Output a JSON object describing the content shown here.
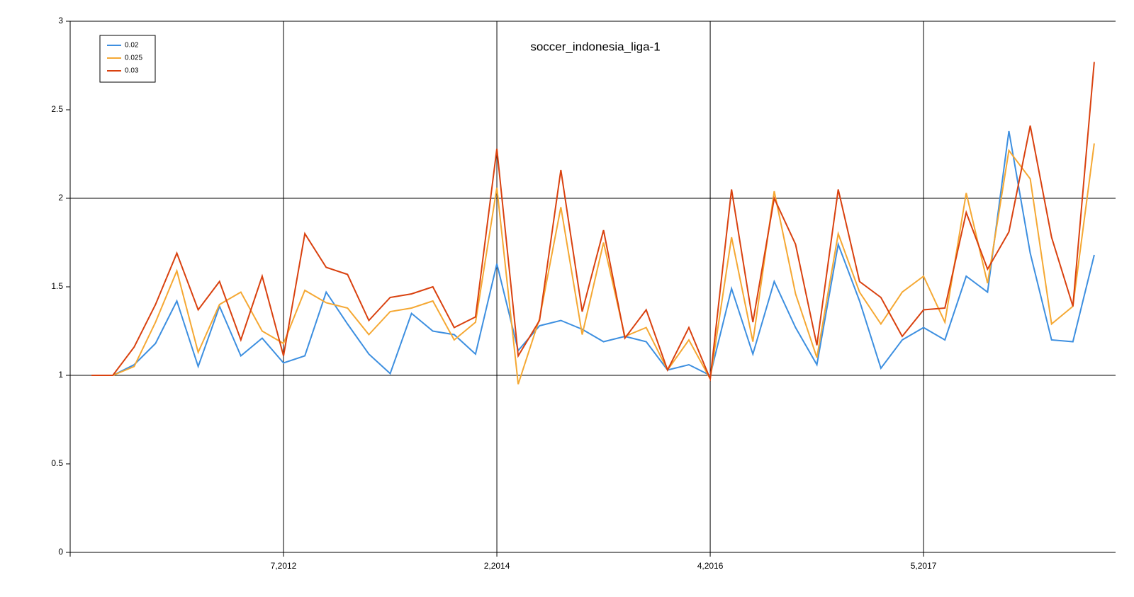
{
  "chart_data": {
    "type": "line",
    "title": "soccer_indonesia_liga-1",
    "categories": [
      null,
      null,
      null,
      null,
      null,
      null,
      null,
      null,
      null,
      "7,2012",
      null,
      null,
      null,
      null,
      null,
      null,
      null,
      null,
      null,
      "2,2014",
      null,
      null,
      null,
      null,
      null,
      null,
      null,
      null,
      null,
      "4,2016",
      null,
      null,
      null,
      null,
      null,
      null,
      null,
      null,
      null,
      "5,2017",
      null,
      null,
      null,
      null,
      null,
      null,
      null,
      null
    ],
    "series": [
      {
        "name": "0.02",
        "color": "#3d8fe0",
        "values": [
          1.0,
          1.0,
          1.06,
          1.18,
          1.42,
          1.05,
          1.39,
          1.11,
          1.21,
          1.07,
          1.11,
          1.47,
          1.29,
          1.12,
          1.01,
          1.35,
          1.25,
          1.23,
          1.12,
          1.63,
          1.14,
          1.28,
          1.31,
          1.26,
          1.19,
          1.22,
          1.19,
          1.03,
          1.06,
          1.0,
          1.49,
          1.12,
          1.53,
          1.27,
          1.06,
          1.74,
          1.42,
          1.04,
          1.2,
          1.27,
          1.2,
          1.56,
          1.47,
          2.38,
          1.69,
          1.2,
          1.19,
          1.68
        ]
      },
      {
        "name": "0.025",
        "color": "#f5a833",
        "values": [
          1.0,
          1.0,
          1.05,
          1.3,
          1.59,
          1.13,
          1.4,
          1.47,
          1.25,
          1.18,
          1.48,
          1.41,
          1.38,
          1.23,
          1.36,
          1.38,
          1.42,
          1.2,
          1.3,
          2.06,
          0.95,
          1.32,
          1.95,
          1.23,
          1.75,
          1.22,
          1.27,
          1.03,
          1.2,
          0.98,
          1.78,
          1.19,
          2.04,
          1.46,
          1.1,
          1.8,
          1.47,
          1.29,
          1.47,
          1.56,
          1.3,
          2.03,
          1.52,
          2.27,
          2.11,
          1.29,
          1.39,
          2.31
        ]
      },
      {
        "name": "0.03",
        "color": "#d9410f",
        "values": [
          1.0,
          1.0,
          1.16,
          1.4,
          1.69,
          1.37,
          1.53,
          1.2,
          1.56,
          1.11,
          1.8,
          1.61,
          1.57,
          1.31,
          1.44,
          1.46,
          1.5,
          1.27,
          1.33,
          2.28,
          1.11,
          1.31,
          2.16,
          1.36,
          1.82,
          1.21,
          1.37,
          1.03,
          1.27,
          0.98,
          2.05,
          1.3,
          2.0,
          1.74,
          1.17,
          2.05,
          1.53,
          1.44,
          1.22,
          1.37,
          1.38,
          1.92,
          1.6,
          1.81,
          2.41,
          1.78,
          1.39,
          2.77
        ]
      }
    ],
    "ylim": [
      0,
      3
    ],
    "yticks": [
      0,
      0.5,
      1,
      1.5,
      2,
      2.5,
      3
    ],
    "grid": true,
    "legend": "upper left"
  }
}
